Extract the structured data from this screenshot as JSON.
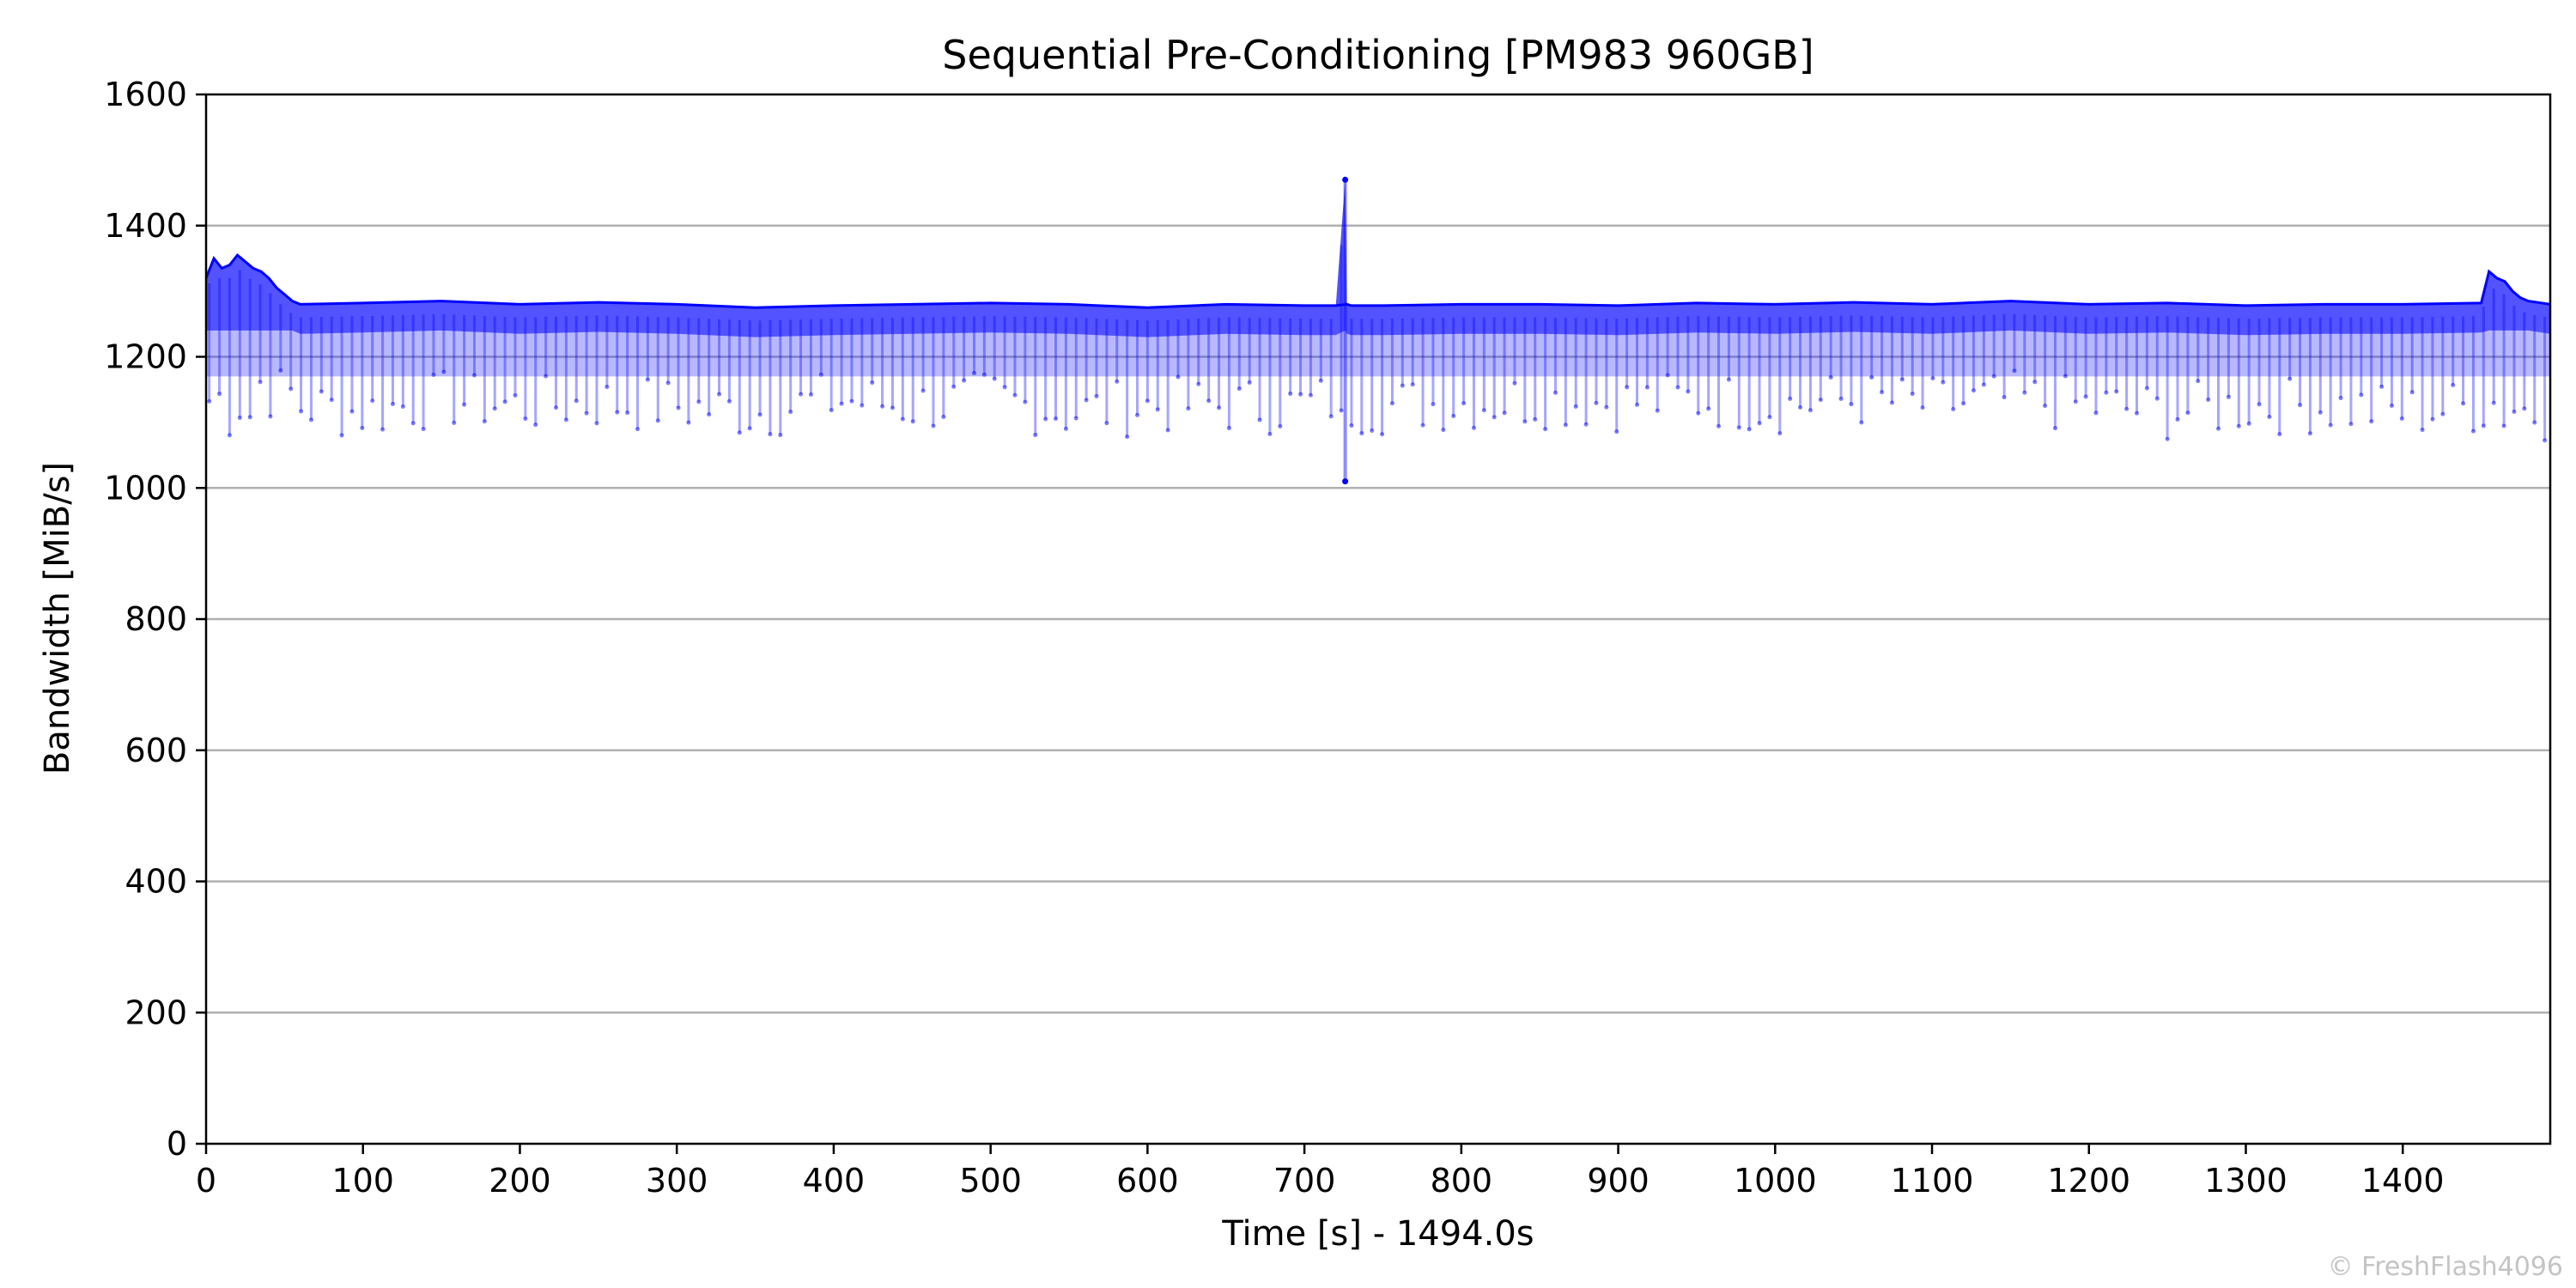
{
  "chart_data": {
    "type": "line",
    "title": "Sequential Pre-Conditioning [PM983 960GB]",
    "xlabel": "Time [s] - 1494.0s",
    "ylabel": "Bandwidth [MiB/s]",
    "xlim": [
      0,
      1494
    ],
    "ylim": [
      0,
      1600
    ],
    "xticks": [
      0,
      100,
      200,
      300,
      400,
      500,
      600,
      700,
      800,
      900,
      1000,
      1100,
      1200,
      1300,
      1400
    ],
    "yticks": [
      0,
      200,
      400,
      600,
      800,
      1000,
      1200,
      1400,
      1600
    ],
    "grid": "horizontal",
    "series_color": "#0000ff",
    "series": [
      {
        "x": [
          0,
          5,
          10,
          15,
          20,
          25,
          30,
          35,
          40,
          45,
          50,
          55,
          60,
          100,
          150,
          200,
          250,
          300,
          350,
          400,
          450,
          500,
          550,
          600,
          650,
          700,
          720,
          726,
          727,
          730,
          750,
          800,
          850,
          900,
          950,
          1000,
          1050,
          1100,
          1150,
          1200,
          1250,
          1300,
          1350,
          1400,
          1450,
          1455,
          1460,
          1465,
          1470,
          1475,
          1480,
          1494
        ],
        "upper": [
          1320,
          1350,
          1335,
          1340,
          1355,
          1345,
          1335,
          1330,
          1320,
          1305,
          1295,
          1285,
          1280,
          1282,
          1285,
          1280,
          1283,
          1280,
          1275,
          1278,
          1280,
          1282,
          1280,
          1275,
          1280,
          1278,
          1278,
          1470,
          1280,
          1278,
          1278,
          1280,
          1280,
          1278,
          1282,
          1280,
          1283,
          1280,
          1285,
          1280,
          1282,
          1278,
          1280,
          1280,
          1282,
          1330,
          1320,
          1315,
          1300,
          1290,
          1285,
          1280
        ],
        "lower": [
          1080,
          1100,
          1090,
          1070,
          1100,
          1050,
          1080,
          1120,
          1100,
          1110,
          1090,
          1100,
          1080,
          1070,
          1090,
          1080,
          1085,
          1080,
          1070,
          1090,
          1080,
          1090,
          1070,
          1080,
          1080,
          1080,
          1090,
          1010,
          1090,
          1080,
          1080,
          1085,
          1090,
          1085,
          1090,
          1080,
          1090,
          1080,
          1090,
          1080,
          1070,
          1080,
          1080,
          1070,
          1080,
          1080,
          1090,
          1070,
          1080,
          1080,
          1070,
          1070
        ]
      }
    ]
  },
  "watermark": "© FreshFlash4096"
}
